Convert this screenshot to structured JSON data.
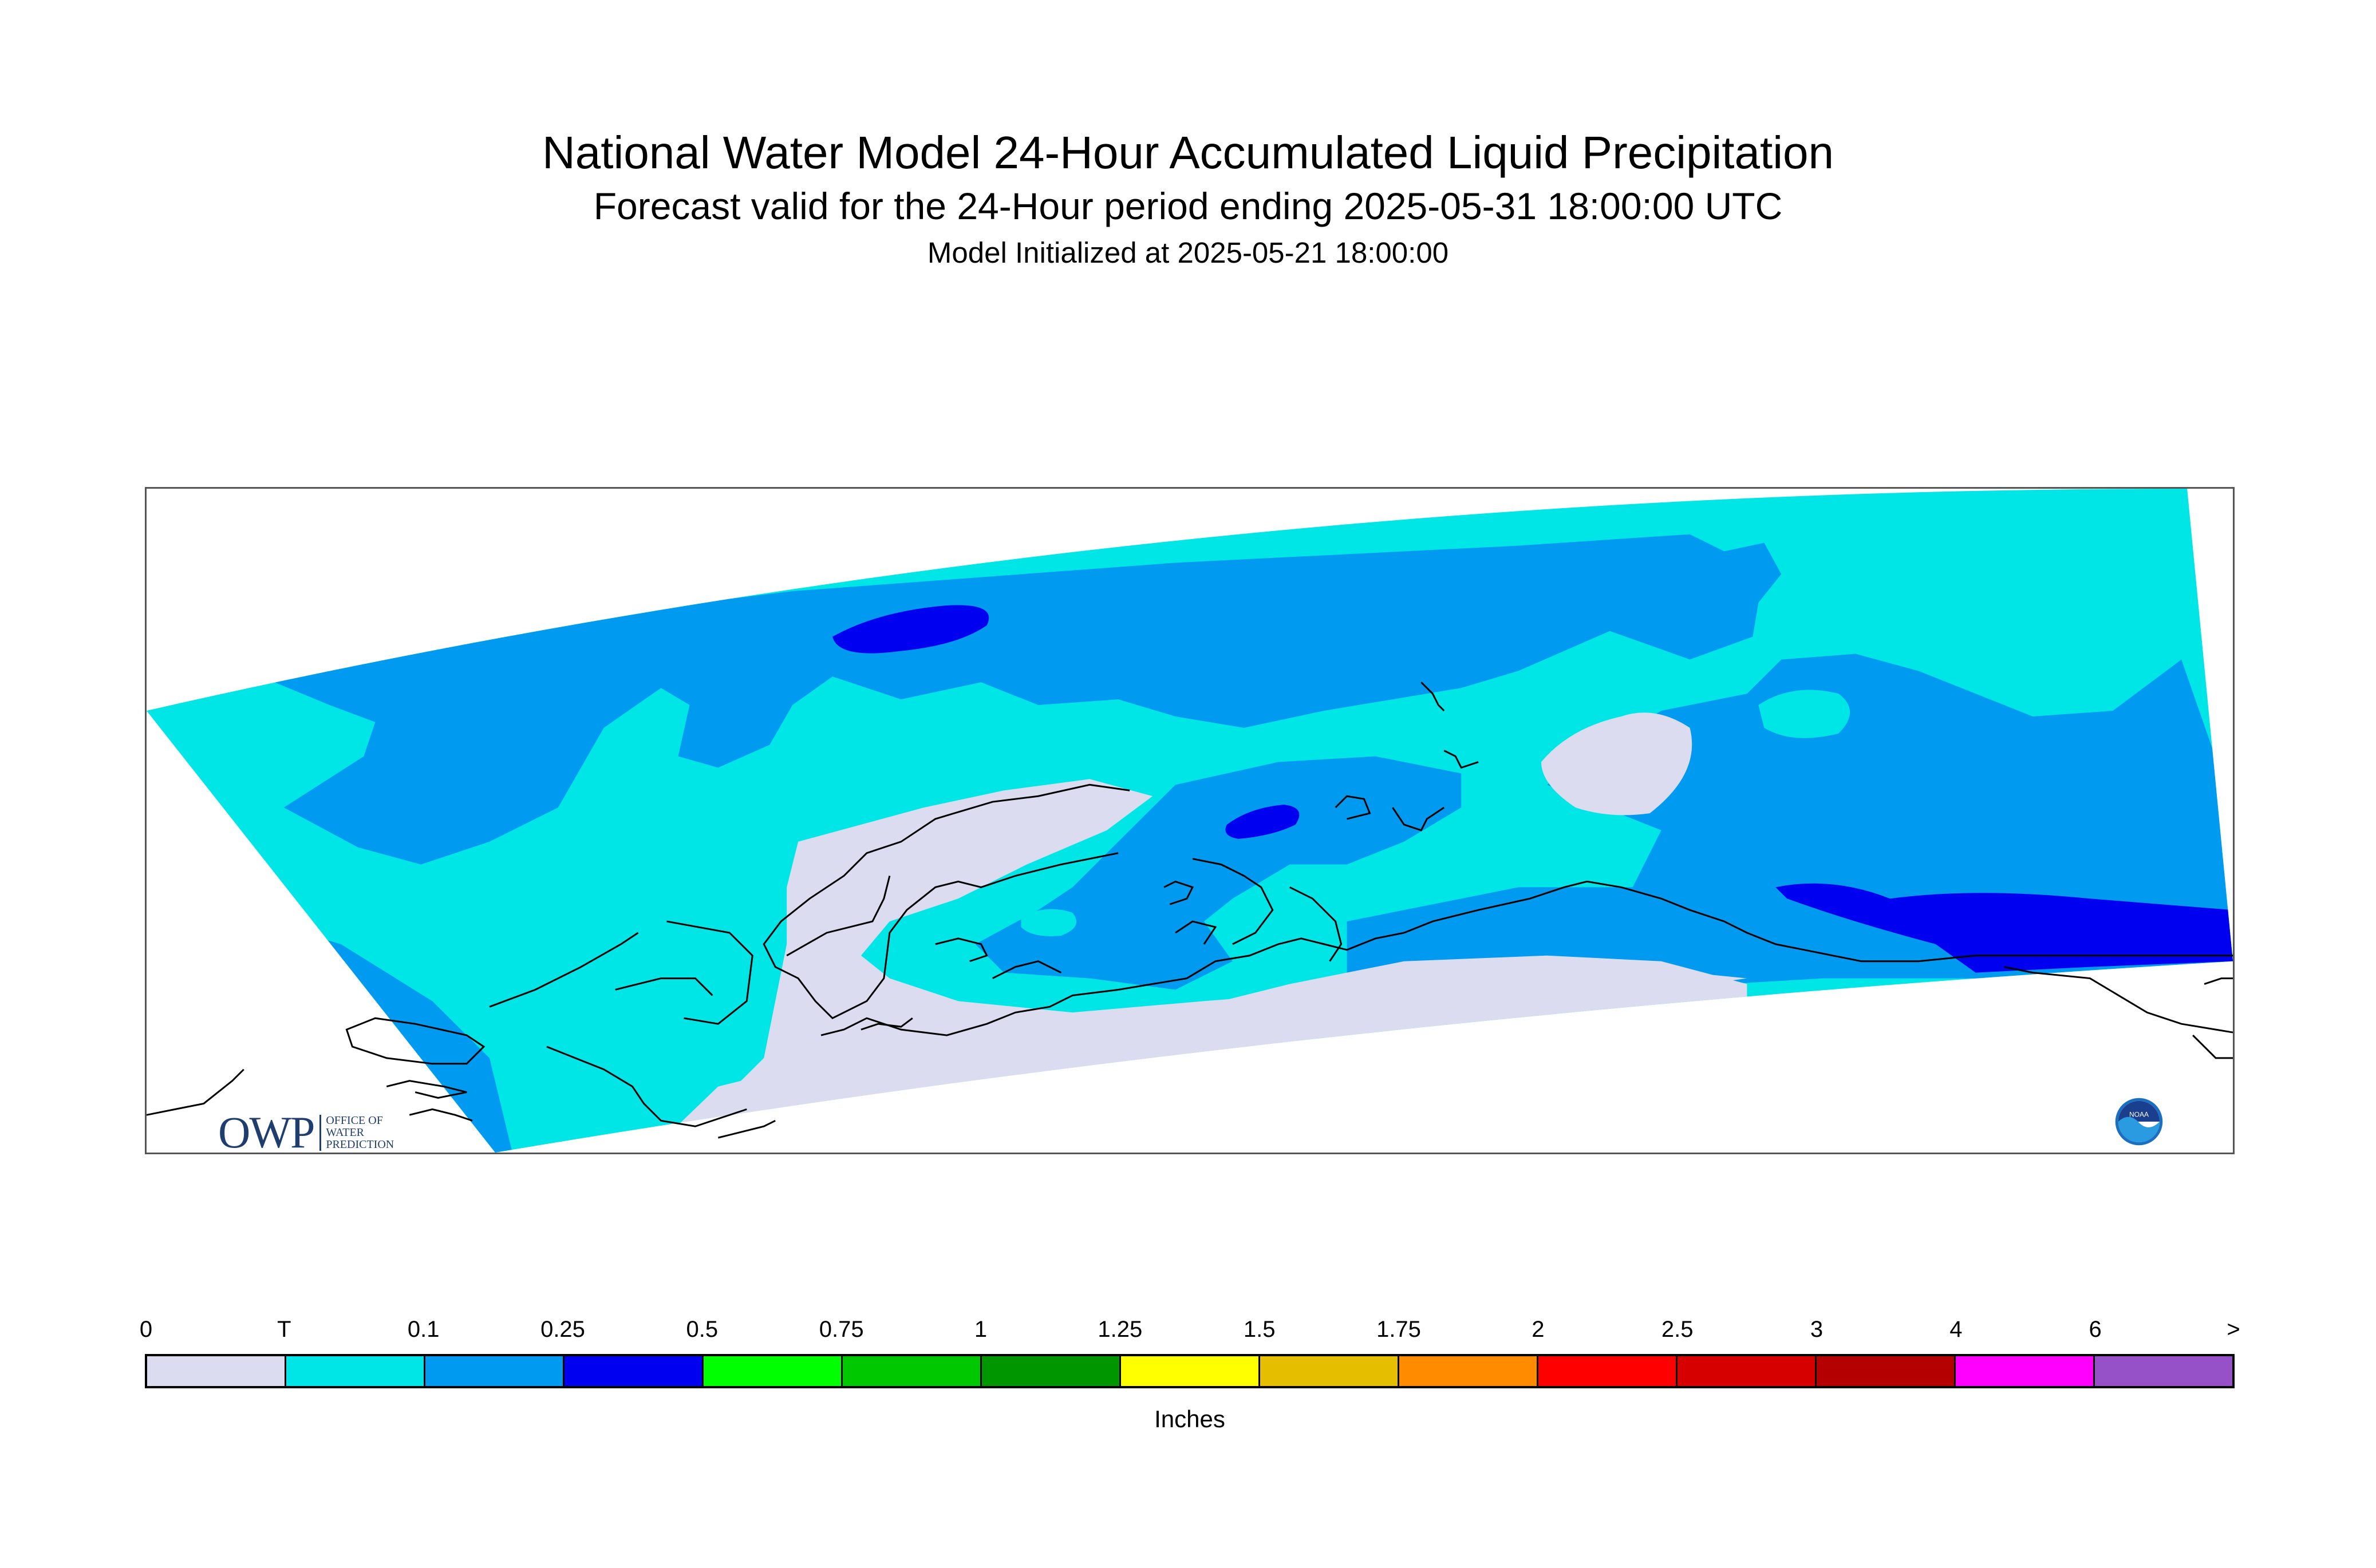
{
  "title": "National Water Model 24-Hour Accumulated Liquid Precipitation",
  "subtitle": "Forecast valid for the 24-Hour period ending 2025-05-31 18:00:00 UTC",
  "init_line": "Model Initialized at 2025-05-21 18:00:00",
  "logos": {
    "owp_letters": "OWP",
    "owp_sub": [
      "OFFICE OF",
      "WATER",
      "PREDICTION"
    ],
    "noaa_text": "NOAA"
  },
  "legend": {
    "units": "Inches",
    "tick_labels": [
      "0",
      "T",
      "0.1",
      "0.25",
      "0.5",
      "0.75",
      "1",
      "1.25",
      "1.5",
      "1.75",
      "2",
      "2.5",
      "3",
      "4",
      "6",
      ">"
    ],
    "colors": [
      "#dcdcf0",
      "#00e6e6",
      "#009bf0",
      "#0000f0",
      "#00ff00",
      "#00c800",
      "#009600",
      "#ffff00",
      "#e6be00",
      "#ff8c00",
      "#ff0000",
      "#d70000",
      "#b40000",
      "#ff00ff",
      "#9650c8"
    ]
  },
  "map": {
    "region": "Alaska",
    "fill_colors": {
      "trace": "#dcdcf0",
      "light": "#00e6e6",
      "medium": "#009bf0",
      "heavy": "#0000f0"
    },
    "coastline_color": "#000000",
    "frame_color": "#555555"
  }
}
